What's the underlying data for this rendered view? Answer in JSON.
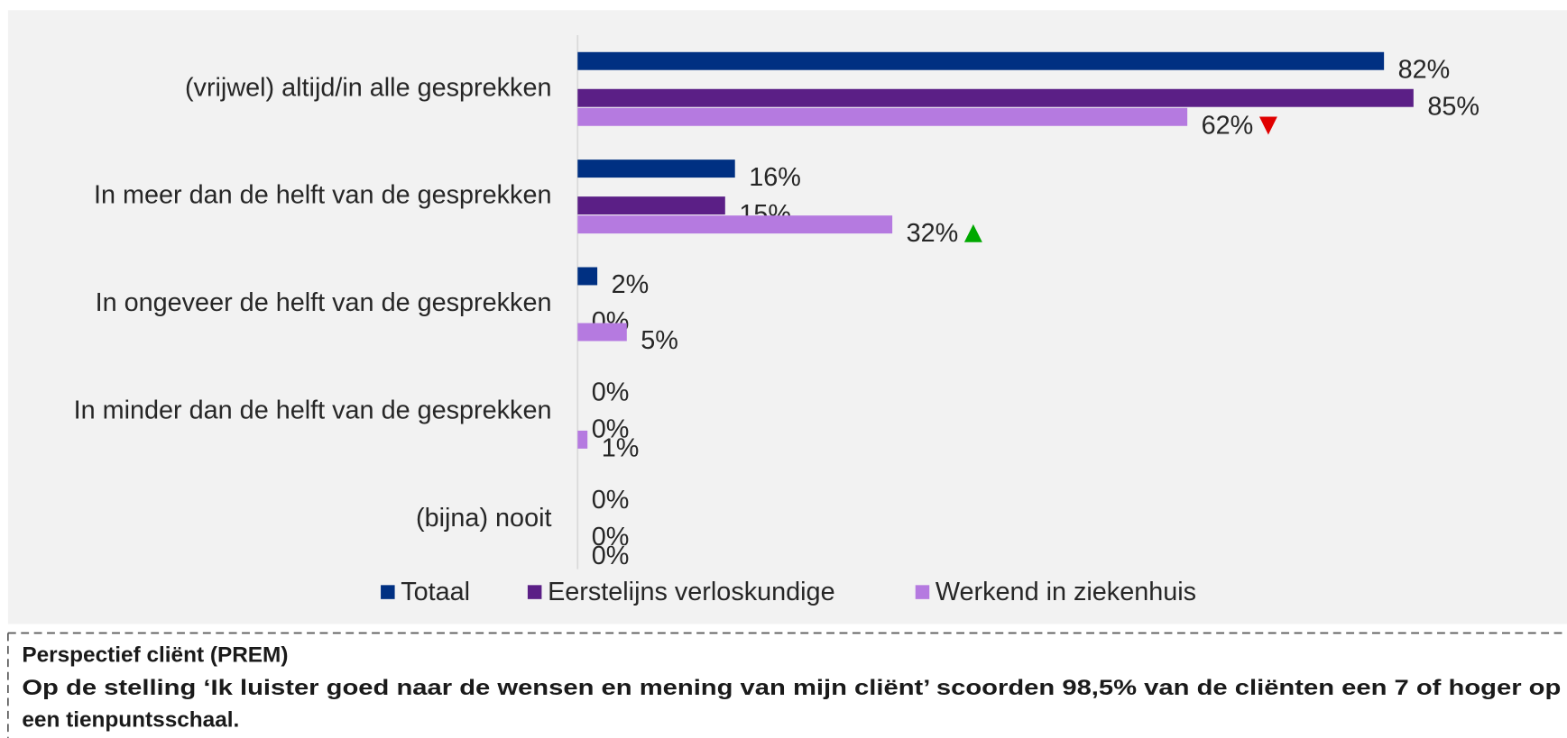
{
  "chart_data": {
    "type": "bar",
    "orientation": "horizontal",
    "categories": [
      "(vrijwel) altijd/in alle gesprekken",
      "In meer dan de helft van de gesprekken",
      "In ongeveer de helft van de gesprekken",
      "In minder dan de helft van de gesprekken",
      "(bijna) nooit"
    ],
    "series": [
      {
        "name": "Totaal",
        "color": "#003082",
        "values": [
          82,
          16,
          2,
          0,
          0
        ],
        "value_labels": [
          "82%",
          "16%",
          "2%",
          "0%",
          "0%"
        ]
      },
      {
        "name": "Eerstelijns verloskundige",
        "color": "#5b1f86",
        "values": [
          85,
          15,
          0,
          0,
          0
        ],
        "value_labels": [
          "85%",
          "15%",
          "0%",
          "0%",
          "0%"
        ]
      },
      {
        "name": "Werkend in ziekenhuis",
        "color": "#b57ae0",
        "values": [
          62,
          32,
          5,
          1,
          0
        ],
        "value_labels": [
          "62%",
          "32%",
          "5%",
          "1%",
          "0%"
        ]
      }
    ],
    "markers": [
      {
        "series": 2,
        "index": 0,
        "symbol": "down",
        "color": "#e00000"
      },
      {
        "series": 2,
        "index": 1,
        "symbol": "up",
        "color": "#00a800"
      }
    ],
    "xlim": [
      0,
      100
    ],
    "legend": "bottom"
  },
  "note": {
    "title": "Perspectief cliënt (PREM)",
    "lines": [
      "Op de stelling ‘Ik luister goed naar de wensen en mening van mijn cliënt’ scoorden 98,5% van de cliënten een 7 of hoger op",
      "een tienpuntsschaal."
    ]
  }
}
